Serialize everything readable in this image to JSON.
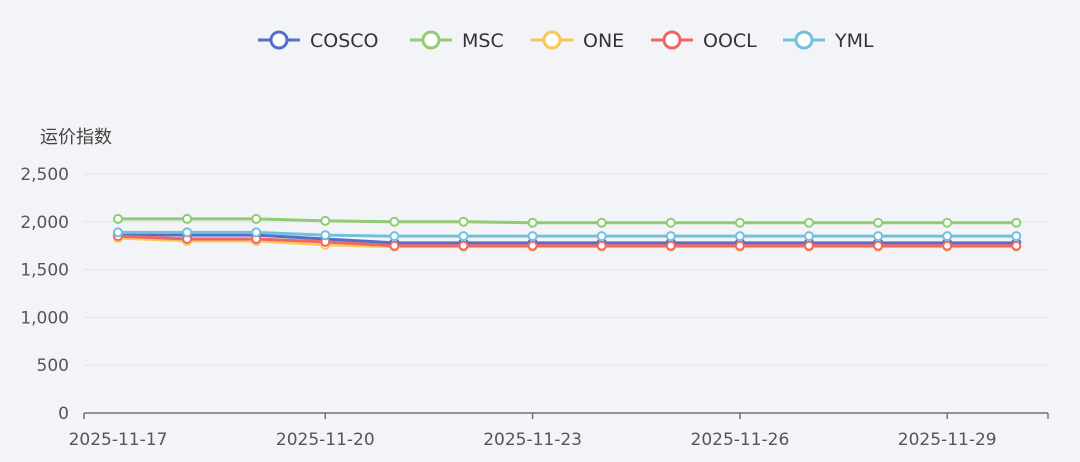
{
  "chart_data": {
    "type": "line",
    "xlabel": "",
    "ylabel": "运价指数",
    "ylim": [
      0,
      2500
    ],
    "yticks": [
      0,
      500,
      1000,
      1500,
      2000,
      2500
    ],
    "ytick_labels": [
      "0",
      "500",
      "1,000",
      "1,500",
      "2,000",
      "2,500"
    ],
    "x_dates": [
      "2025-11-17",
      "2025-11-18",
      "2025-11-19",
      "2025-11-20",
      "2025-11-21",
      "2025-11-22",
      "2025-11-23",
      "2025-11-24",
      "2025-11-25",
      "2025-11-26",
      "2025-11-27",
      "2025-11-28",
      "2025-11-29",
      "2025-11-30"
    ],
    "x_tick_labels": [
      "2025-11-17",
      "2025-11-20",
      "2025-11-23",
      "2025-11-26",
      "2025-11-29"
    ],
    "grid": true,
    "legend_position": "top-center",
    "series": [
      {
        "name": "COSCO",
        "color": "#5470c6",
        "values": [
          1870,
          1860,
          1860,
          1820,
          1780,
          1780,
          1780,
          1780,
          1780,
          1780,
          1780,
          1780,
          1780,
          1780
        ]
      },
      {
        "name": "MSC",
        "color": "#91cc75",
        "values": [
          2030,
          2030,
          2030,
          2010,
          2000,
          2000,
          1990,
          1990,
          1990,
          1990,
          1990,
          1990,
          1990,
          1990
        ]
      },
      {
        "name": "ONE",
        "color": "#fac858",
        "values": [
          1830,
          1800,
          1800,
          1760,
          1740,
          1740,
          1740,
          1740,
          1740,
          1740,
          1740,
          1740,
          1740,
          1740
        ]
      },
      {
        "name": "OOCL",
        "color": "#ee6666",
        "values": [
          1850,
          1820,
          1820,
          1790,
          1750,
          1750,
          1750,
          1750,
          1750,
          1750,
          1750,
          1750,
          1750,
          1750
        ]
      },
      {
        "name": "YML",
        "color": "#73c0de",
        "values": [
          1890,
          1890,
          1890,
          1860,
          1850,
          1850,
          1850,
          1850,
          1850,
          1850,
          1850,
          1850,
          1850,
          1850
        ]
      }
    ]
  }
}
